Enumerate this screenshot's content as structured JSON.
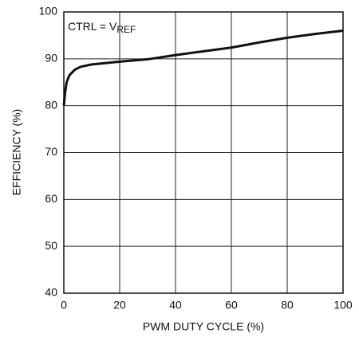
{
  "chart_data": {
    "type": "line",
    "xlabel": "PWM DUTY CYCLE (%)",
    "ylabel": "EFFICIENCY (%)",
    "annotation": {
      "text": "CTRL = V",
      "subscript": "REF"
    },
    "x": [
      0,
      0.5,
      1,
      2,
      4,
      6,
      10,
      15,
      20,
      30,
      40,
      50,
      60,
      70,
      80,
      90,
      100
    ],
    "series": [
      {
        "color": "#111111",
        "values": [
          80,
          83,
          85,
          86.5,
          87.7,
          88.3,
          88.8,
          89.1,
          89.4,
          89.9,
          90.8,
          91.6,
          92.4,
          93.5,
          94.5,
          95.3,
          96
        ]
      }
    ],
    "xlim": [
      0,
      100
    ],
    "xticks": [
      0,
      20,
      40,
      60,
      80,
      100
    ],
    "ylim": [
      40,
      100
    ],
    "yticks": [
      40,
      50,
      60,
      70,
      80,
      90,
      100
    ],
    "grid": true
  }
}
